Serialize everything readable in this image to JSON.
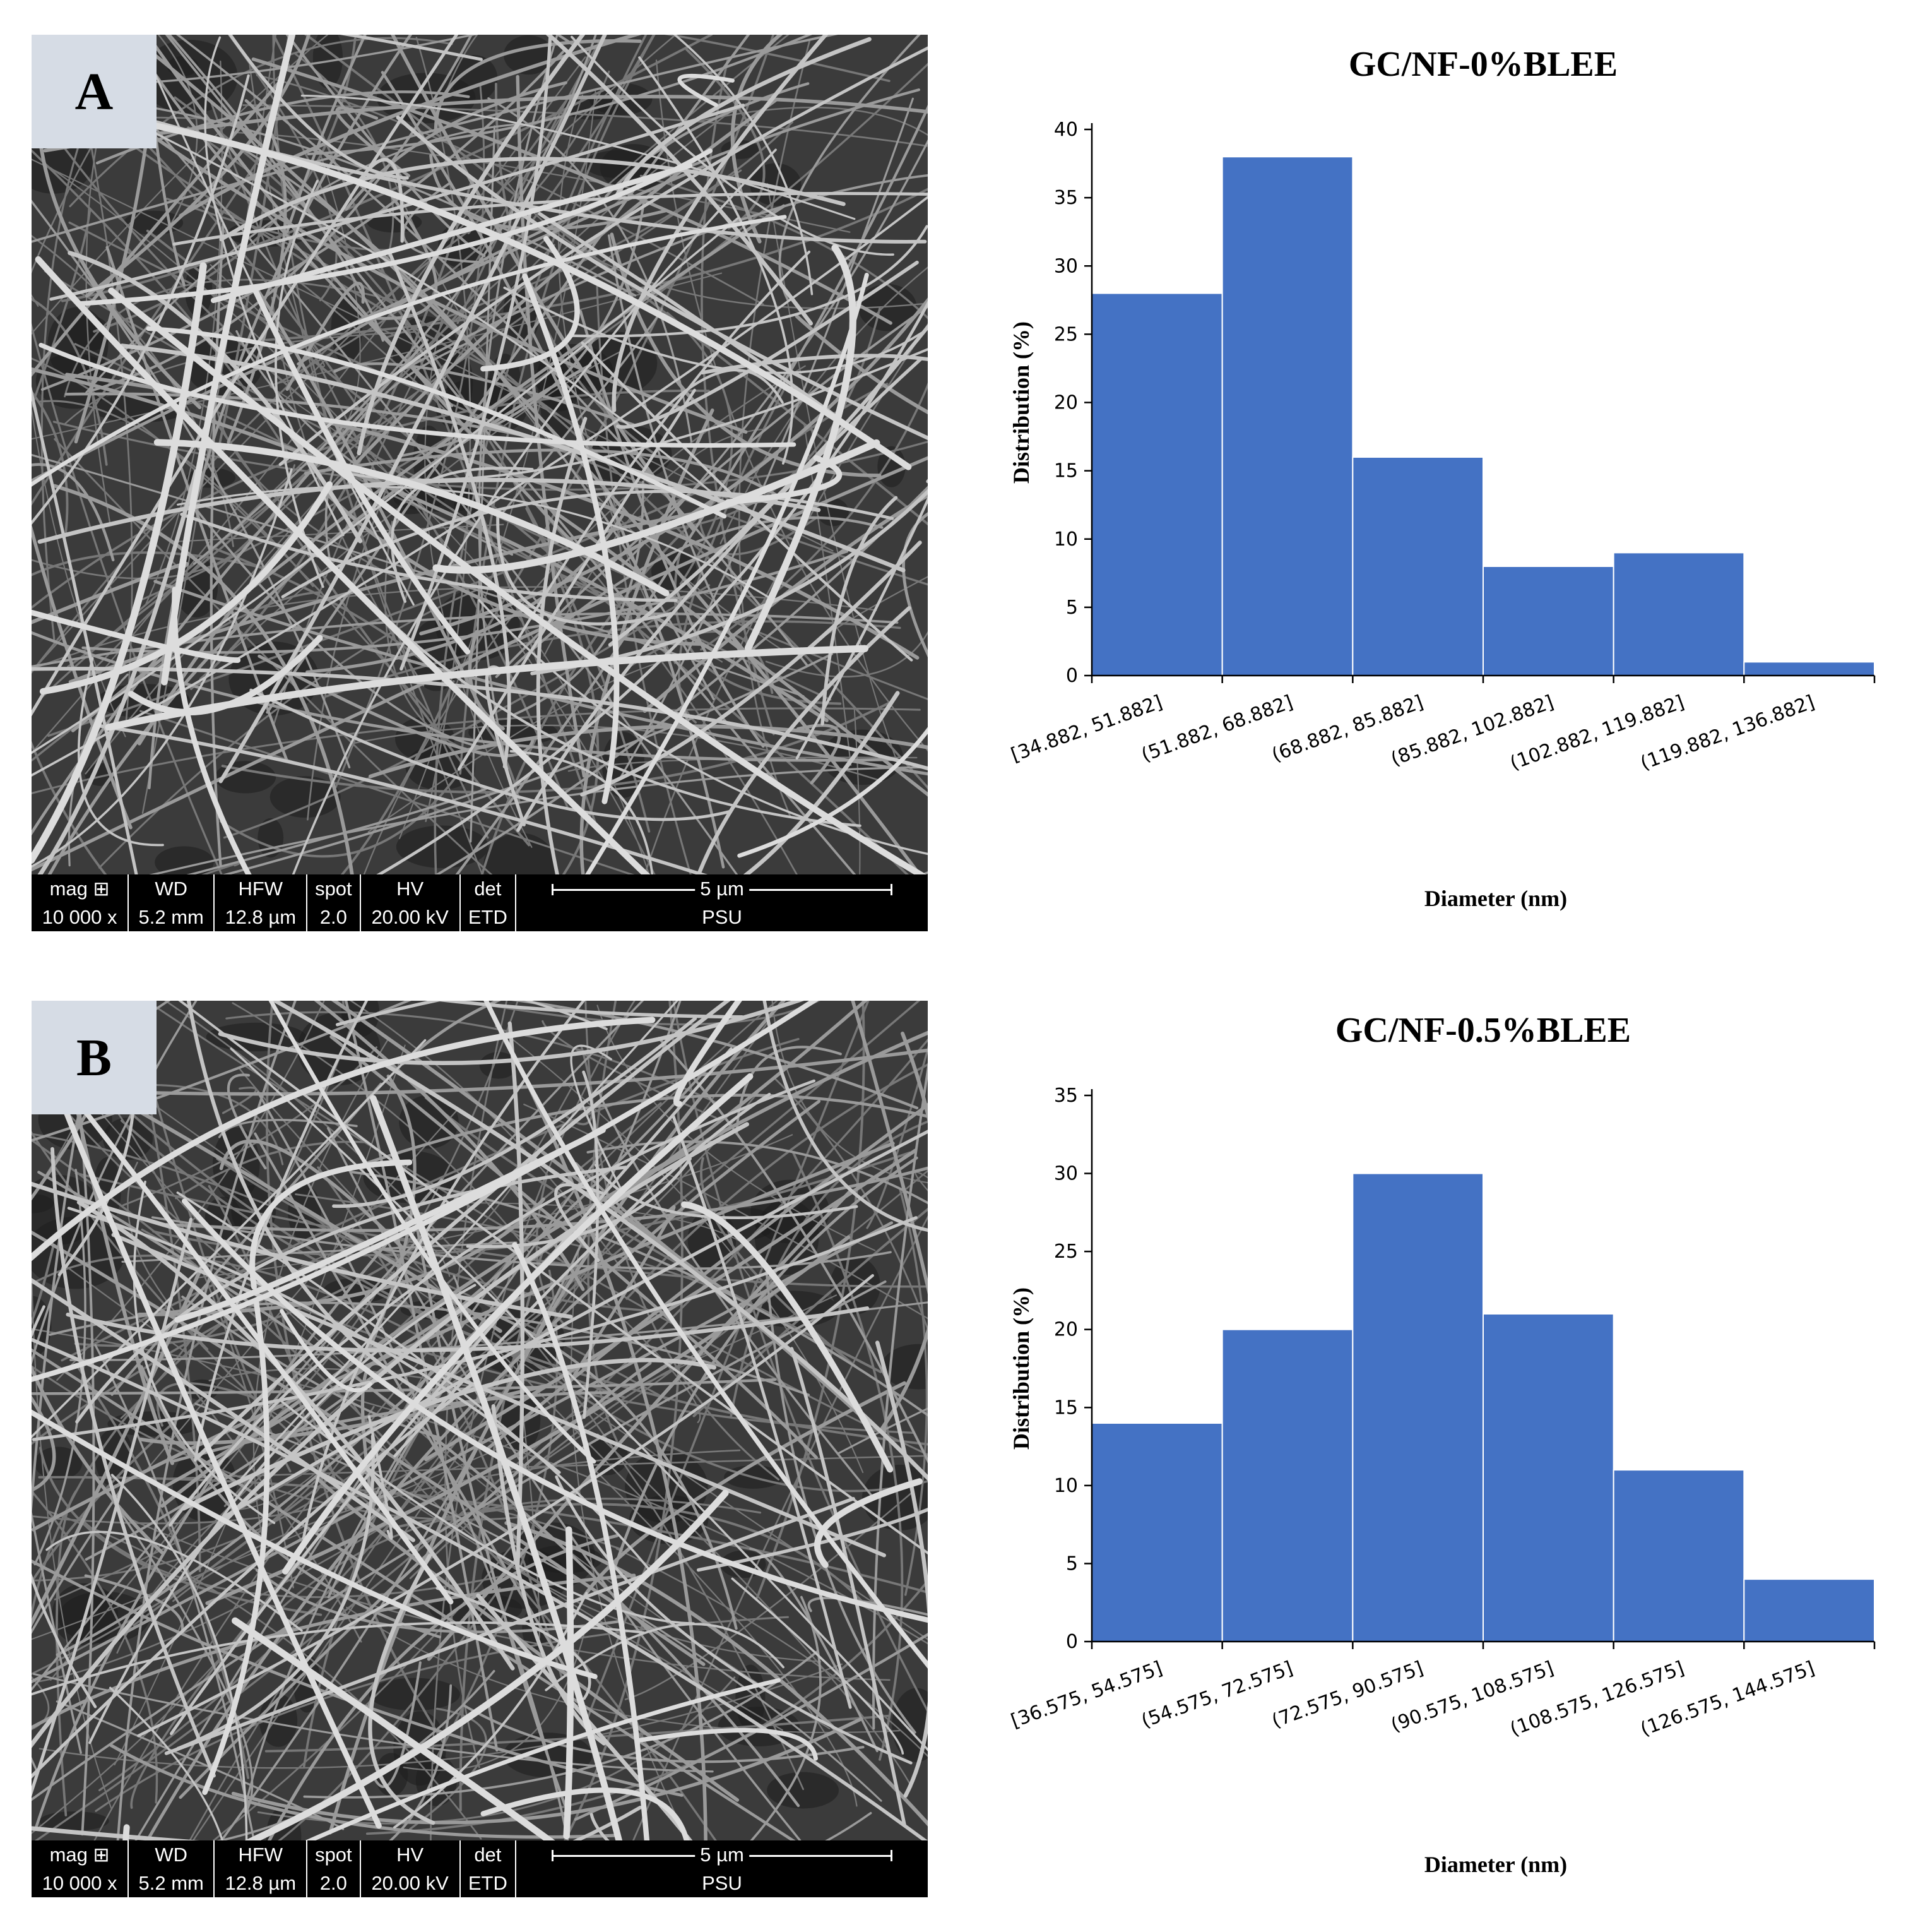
{
  "panels": [
    {
      "label": "A",
      "sem_databar": {
        "headers": [
          "mag ⊞",
          "WD",
          "HFW",
          "spot",
          "HV",
          "det"
        ],
        "values": [
          "10 000 x",
          "5.2 mm",
          "12.8 µm",
          "2.0",
          "20.00 kV",
          "ETD"
        ],
        "scale": "5 µm",
        "lab": "PSU"
      }
    },
    {
      "label": "B",
      "sem_databar": {
        "headers": [
          "mag ⊞",
          "WD",
          "HFW",
          "spot",
          "HV",
          "det"
        ],
        "values": [
          "10 000 x",
          "5.2 mm",
          "12.8 µm",
          "2.0",
          "20.00 kV",
          "ETD"
        ],
        "scale": "5 µm",
        "lab": "PSU"
      }
    }
  ],
  "chart_data": [
    {
      "type": "bar",
      "title": "GC/NF-0%BLEE",
      "xlabel": "Diameter (nm)",
      "ylabel": "Distribution (%)",
      "categories": [
        "[34.882, 51.882]",
        "(51.882, 68.882]",
        "(68.882, 85.882]",
        "(85.882, 102.882]",
        "(102.882, 119.882]",
        "(119.882, 136.882]"
      ],
      "values": [
        28,
        38,
        16,
        8,
        9,
        1
      ],
      "ylim": [
        0,
        40
      ],
      "yticks": [
        0,
        5,
        10,
        15,
        20,
        25,
        30,
        35,
        40
      ],
      "color": "#4472c4",
      "grid": false,
      "legend": "none"
    },
    {
      "type": "bar",
      "title": "GC/NF-0.5%BLEE",
      "xlabel": "Diameter (nm)",
      "ylabel": "Distribution (%)",
      "categories": [
        "[36.575, 54.575]",
        "(54.575, 72.575]",
        "(72.575, 90.575]",
        "(90.575, 108.575]",
        "(108.575, 126.575]",
        "(126.575, 144.575]"
      ],
      "values": [
        14,
        20,
        30,
        21,
        11,
        4
      ],
      "ylim": [
        0,
        35
      ],
      "yticks": [
        0,
        5,
        10,
        15,
        20,
        25,
        30,
        35
      ],
      "color": "#4472c4",
      "grid": false,
      "legend": "none"
    }
  ]
}
